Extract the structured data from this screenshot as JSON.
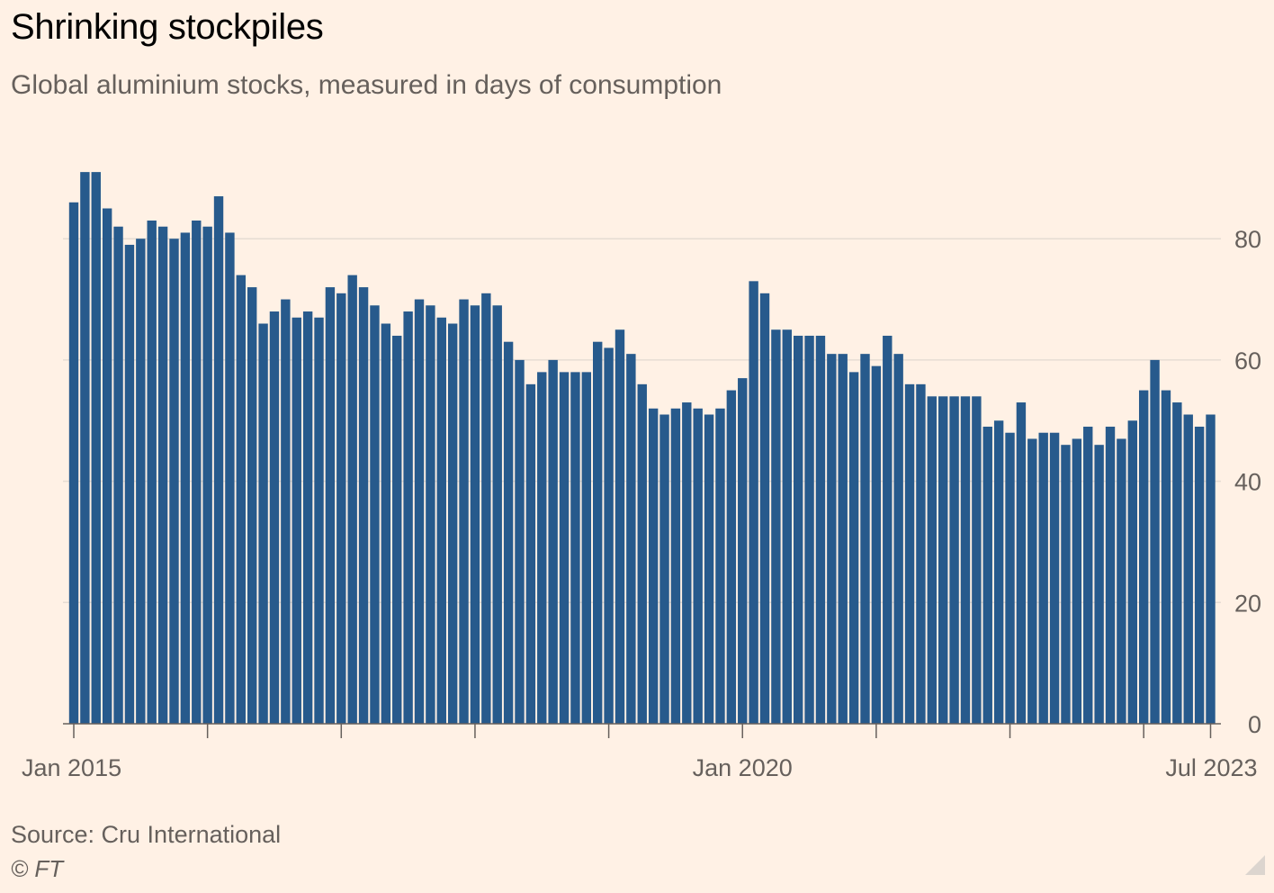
{
  "title": "Shrinking stockpiles",
  "subtitle": "Global aluminium stocks, measured in days of consumption",
  "source": "Source: Cru International",
  "copyright": "© FT",
  "colors": {
    "background": "#FFF1E5",
    "bar": "#275A8C",
    "grid": "#E6DCD3",
    "axis": "#66605C",
    "text": "#66605C",
    "title": "#000000"
  },
  "chart_data": {
    "type": "bar",
    "frequency": "monthly",
    "first_month": "Jan 2015",
    "last_month": "Jul 2023",
    "x_ticks": [
      "Jan 2015",
      "Jan 2020",
      "Jul 2023"
    ],
    "y_ticks": [
      0,
      20,
      40,
      60,
      80
    ],
    "ylim": [
      0,
      90
    ],
    "grid": true,
    "y_axis_side": "right",
    "title": "Shrinking stockpiles",
    "ylabel": "Global aluminium stocks, measured in days of consumption",
    "values": [
      86,
      91,
      91,
      85,
      82,
      79,
      80,
      83,
      82,
      80,
      81,
      83,
      82,
      87,
      81,
      74,
      72,
      66,
      68,
      70,
      67,
      68,
      67,
      72,
      71,
      74,
      72,
      69,
      66,
      64,
      68,
      70,
      69,
      67,
      66,
      70,
      69,
      71,
      69,
      63,
      60,
      56,
      58,
      60,
      58,
      58,
      58,
      63,
      62,
      65,
      61,
      56,
      52,
      51,
      52,
      53,
      52,
      51,
      52,
      55,
      57,
      73,
      71,
      65,
      65,
      64,
      64,
      64,
      61,
      61,
      58,
      61,
      59,
      64,
      61,
      56,
      56,
      54,
      54,
      54,
      54,
      54,
      49,
      50,
      48,
      53,
      47,
      48,
      48,
      46,
      47,
      49,
      46,
      49,
      47,
      50,
      55,
      60,
      55,
      53,
      51,
      49,
      51
    ]
  }
}
